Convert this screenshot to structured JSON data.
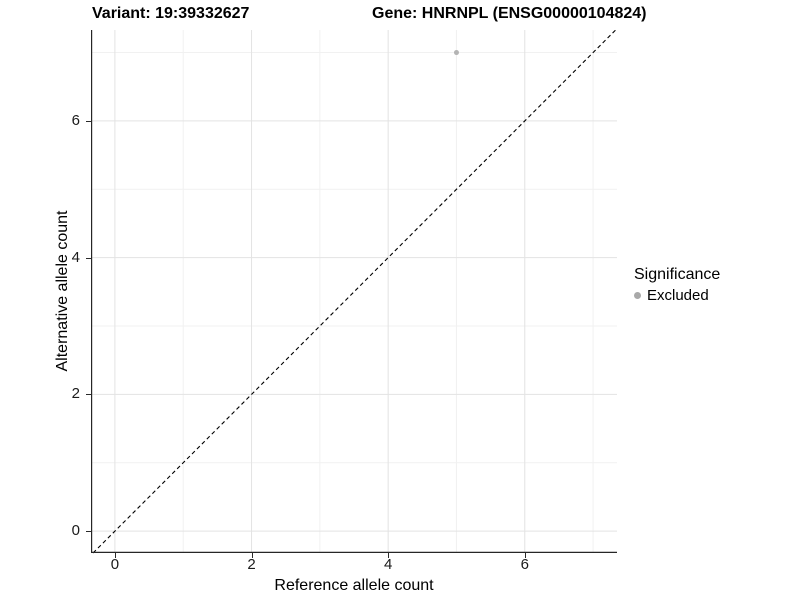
{
  "header": {
    "variant_title": "Variant: 19:39332627",
    "gene_title": "Gene: HNRNPL (ENSG00000104824)"
  },
  "chart_data": {
    "type": "scatter",
    "xlabel": "Reference allele count",
    "ylabel": "Alternative allele count",
    "xlim": [
      -0.35,
      7.35
    ],
    "ylim": [
      -0.32,
      7.33
    ],
    "x_ticks": [
      0,
      2,
      4,
      6
    ],
    "y_ticks": [
      0,
      2,
      4,
      6
    ],
    "x_minor_ticks": [
      1,
      3,
      5,
      7
    ],
    "y_minor_ticks": [
      1,
      3,
      5,
      7
    ],
    "grid": true,
    "reference_line": {
      "type": "identity y=x",
      "style": "dashed",
      "color": "#000000"
    },
    "points": [
      {
        "x": 5,
        "y": 7,
        "series": "Excluded"
      }
    ],
    "point_color": "#b4b4b4",
    "point_radius": 2.5,
    "legend": {
      "title": "Significance",
      "position": "right",
      "items": [
        {
          "label": "Excluded",
          "color": "#a9a9a9"
        }
      ]
    },
    "style": {
      "background": "#ffffff",
      "grid_major_color": "#e3e3e3",
      "grid_minor_color": "#f1f1f1",
      "axis_color": "#262626"
    }
  }
}
